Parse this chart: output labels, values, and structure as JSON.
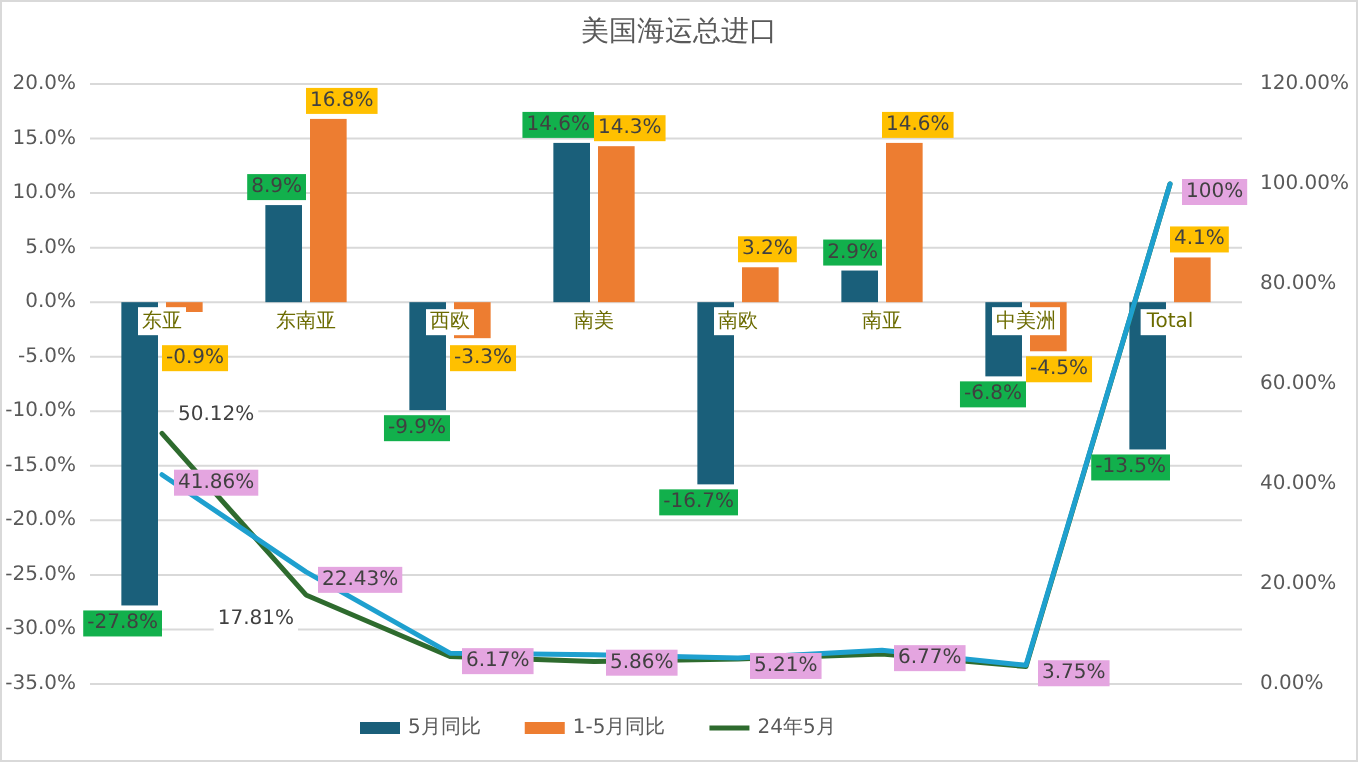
{
  "chart_data": {
    "type": "bar",
    "title": "美国海运总进口",
    "categories": [
      "东亚",
      "东南亚",
      "西欧",
      "南美",
      "南欧",
      "南亚",
      "中美洲",
      "Total"
    ],
    "series": [
      {
        "name": "5月同比",
        "color": "#1a5f7a",
        "values": [
          -27.8,
          8.9,
          -9.9,
          14.6,
          -16.7,
          2.9,
          -6.8,
          -13.5
        ],
        "value_labels": [
          "-27.8%",
          "8.9%",
          "-9.9%",
          "14.6%",
          "-16.7%",
          "2.9%",
          "-6.8%",
          "-13.5%"
        ]
      },
      {
        "name": "1-5月同比",
        "color": "#ed7d31",
        "values": [
          -0.9,
          16.8,
          -3.3,
          14.3,
          3.2,
          14.6,
          -4.5,
          4.1
        ],
        "value_labels": [
          "-0.9%",
          "16.8%",
          "-3.3%",
          "14.3%",
          "3.2%",
          "14.6%",
          "-4.5%",
          "4.1%"
        ]
      },
      {
        "name": "24年5月",
        "type": "line",
        "axis": "y2",
        "color": "#2e6b2e",
        "values": [
          50.12,
          17.81,
          5.5,
          4.5,
          5.0,
          6.0,
          3.5,
          100
        ],
        "value_labels": [
          "50.12%",
          "17.81%",
          null,
          null,
          null,
          null,
          null,
          null
        ]
      },
      {
        "type": "line",
        "axis": "y2",
        "color": "#1ea0cf",
        "values": [
          41.86,
          22.43,
          6.17,
          5.86,
          5.21,
          6.77,
          3.75,
          100
        ],
        "value_labels": [
          "41.86%",
          "22.43%",
          "6.17%",
          "5.86%",
          "5.21%",
          "6.77%",
          "3.75%",
          "100%"
        ]
      }
    ],
    "ylim": [
      -35,
      20
    ],
    "yticks": [
      {
        "value": -35,
        "label": "-35.0%"
      },
      {
        "value": -30,
        "label": "-30.0%"
      },
      {
        "value": -25,
        "label": "-25.0%"
      },
      {
        "value": -20,
        "label": "-20.0%"
      },
      {
        "value": -15,
        "label": "-15.0%"
      },
      {
        "value": -10,
        "label": "-10.0%"
      },
      {
        "value": -5,
        "label": "-5.0%"
      },
      {
        "value": 0,
        "label": "0.0%"
      },
      {
        "value": 5,
        "label": "5.0%"
      },
      {
        "value": 10,
        "label": "10.0%"
      },
      {
        "value": 15,
        "label": "15.0%"
      },
      {
        "value": 20,
        "label": "20.0%"
      }
    ],
    "y2lim": [
      0,
      120
    ],
    "y2ticks": [
      {
        "value": 0,
        "label": "0.00%"
      },
      {
        "value": 20,
        "label": "20.00%"
      },
      {
        "value": 40,
        "label": "40.00%"
      },
      {
        "value": 60,
        "label": "60.00%"
      },
      {
        "value": 80,
        "label": "80.00%"
      },
      {
        "value": 100,
        "label": "100.00%"
      },
      {
        "value": 120,
        "label": "120.00%"
      }
    ],
    "grid": "y",
    "legend": "bottom"
  }
}
